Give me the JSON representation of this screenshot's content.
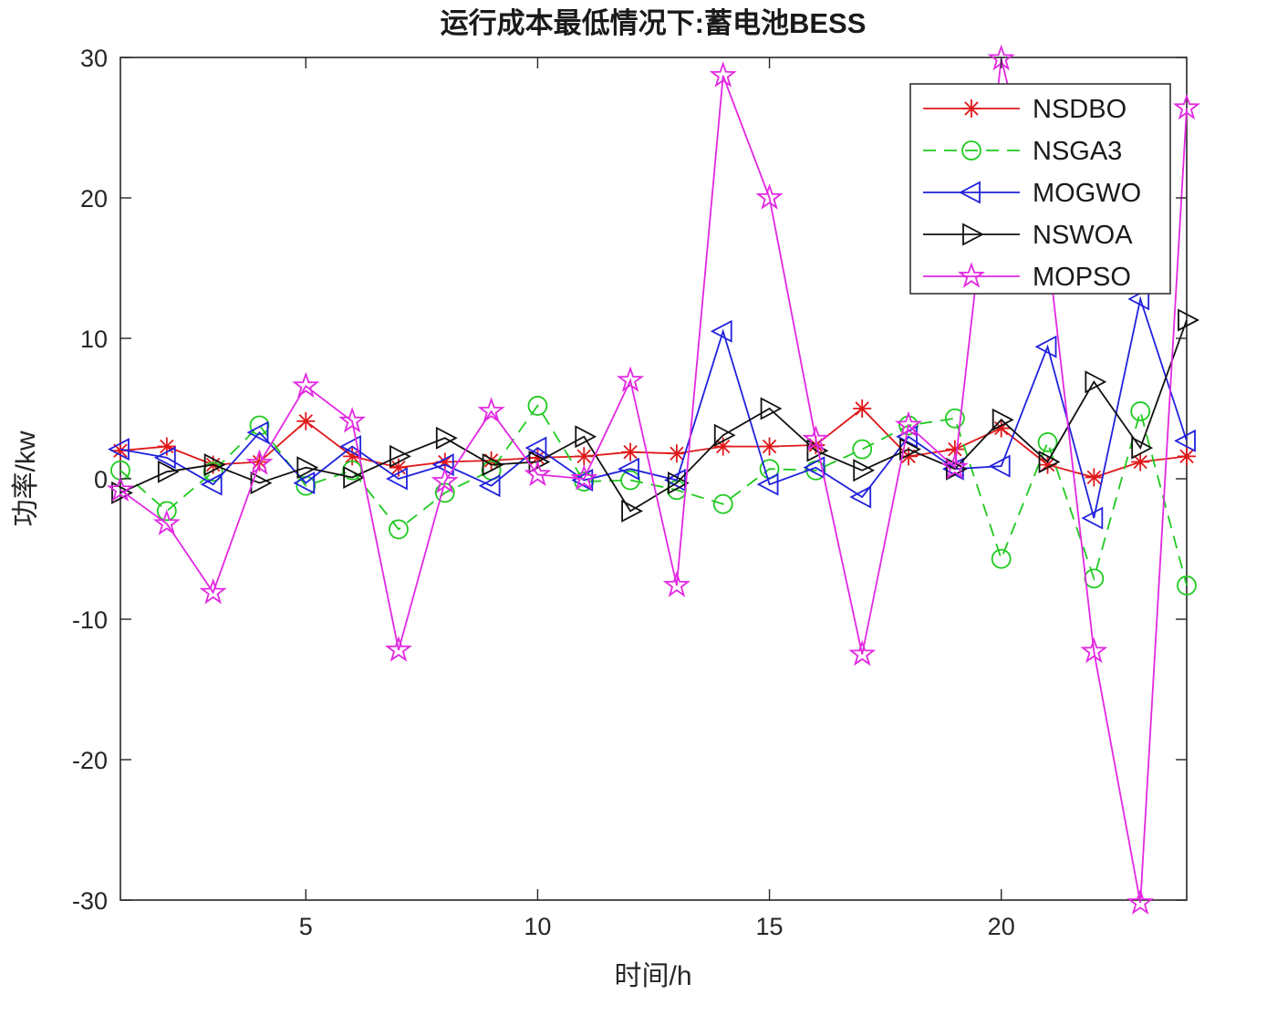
{
  "figure": {
    "title": "运行成本最低情况下:蓄电池BESS",
    "xlabel": "时间/h",
    "ylabel": "功率/kw"
  },
  "chart_data": {
    "type": "line",
    "title": "运行成本最低情况下:蓄电池BESS",
    "xlabel": "时间/h",
    "ylabel": "功率/kw",
    "x": [
      1,
      2,
      3,
      4,
      5,
      6,
      7,
      8,
      9,
      10,
      11,
      12,
      13,
      14,
      15,
      16,
      17,
      18,
      19,
      20,
      21,
      22,
      23,
      24
    ],
    "xlim": [
      1,
      24
    ],
    "ylim": [
      -30,
      30
    ],
    "xticks": [
      5,
      10,
      15,
      20
    ],
    "yticks": [
      -30,
      -20,
      -10,
      0,
      10,
      20,
      30
    ],
    "grid": false,
    "legend_position": "upper-right",
    "series": [
      {
        "name": "NSDBO",
        "color": "#e01819",
        "line": "solid",
        "marker": "asterisk",
        "values": [
          2.0,
          2.3,
          1.0,
          1.2,
          4.1,
          1.6,
          0.8,
          1.2,
          1.3,
          1.5,
          1.6,
          1.9,
          1.8,
          2.3,
          2.3,
          2.4,
          5.0,
          1.6,
          2.1,
          3.6,
          1.0,
          0.1,
          1.2,
          1.6
        ]
      },
      {
        "name": "NSGA3",
        "color": "#1fca1f",
        "line": "dashed",
        "marker": "circle",
        "values": [
          0.6,
          -2.3,
          0.5,
          3.8,
          -0.5,
          0.6,
          -3.6,
          -1.0,
          0.6,
          5.2,
          -0.2,
          -0.1,
          -0.8,
          -1.8,
          0.7,
          0.6,
          2.1,
          3.8,
          4.3,
          -5.7,
          2.6,
          -7.1,
          4.8,
          -7.6
        ]
      },
      {
        "name": "MOGWO",
        "color": "#2121dd",
        "line": "solid",
        "marker": "triangle-left",
        "values": [
          2.1,
          1.5,
          -0.4,
          3.3,
          -0.3,
          2.3,
          0.0,
          1.0,
          -0.5,
          2.2,
          -0.1,
          0.7,
          -0.1,
          10.5,
          -0.4,
          0.8,
          -1.3,
          3.0,
          0.7,
          0.9,
          9.4,
          -2.8,
          12.8,
          2.7
        ]
      },
      {
        "name": "NSWOA",
        "color": "#111111",
        "line": "solid",
        "marker": "triangle-right",
        "values": [
          -1.0,
          0.5,
          1.0,
          -0.3,
          0.8,
          0.1,
          1.6,
          2.9,
          1.0,
          1.2,
          3.0,
          -2.3,
          -0.3,
          3.1,
          5.0,
          2.0,
          0.6,
          2.1,
          0.7,
          4.2,
          1.2,
          6.9,
          2.2,
          11.3
        ]
      },
      {
        "name": "MOPSO",
        "color": "#e228e2",
        "line": "solid",
        "marker": "pentagram",
        "values": [
          -0.8,
          -3.2,
          -8.1,
          1.1,
          6.6,
          4.1,
          -12.2,
          -0.2,
          4.8,
          0.3,
          0.0,
          7.0,
          -7.6,
          28.7,
          20.0,
          2.8,
          -12.5,
          3.8,
          0.8,
          29.9,
          16.5,
          -12.3,
          -30.2,
          26.4
        ]
      }
    ]
  }
}
